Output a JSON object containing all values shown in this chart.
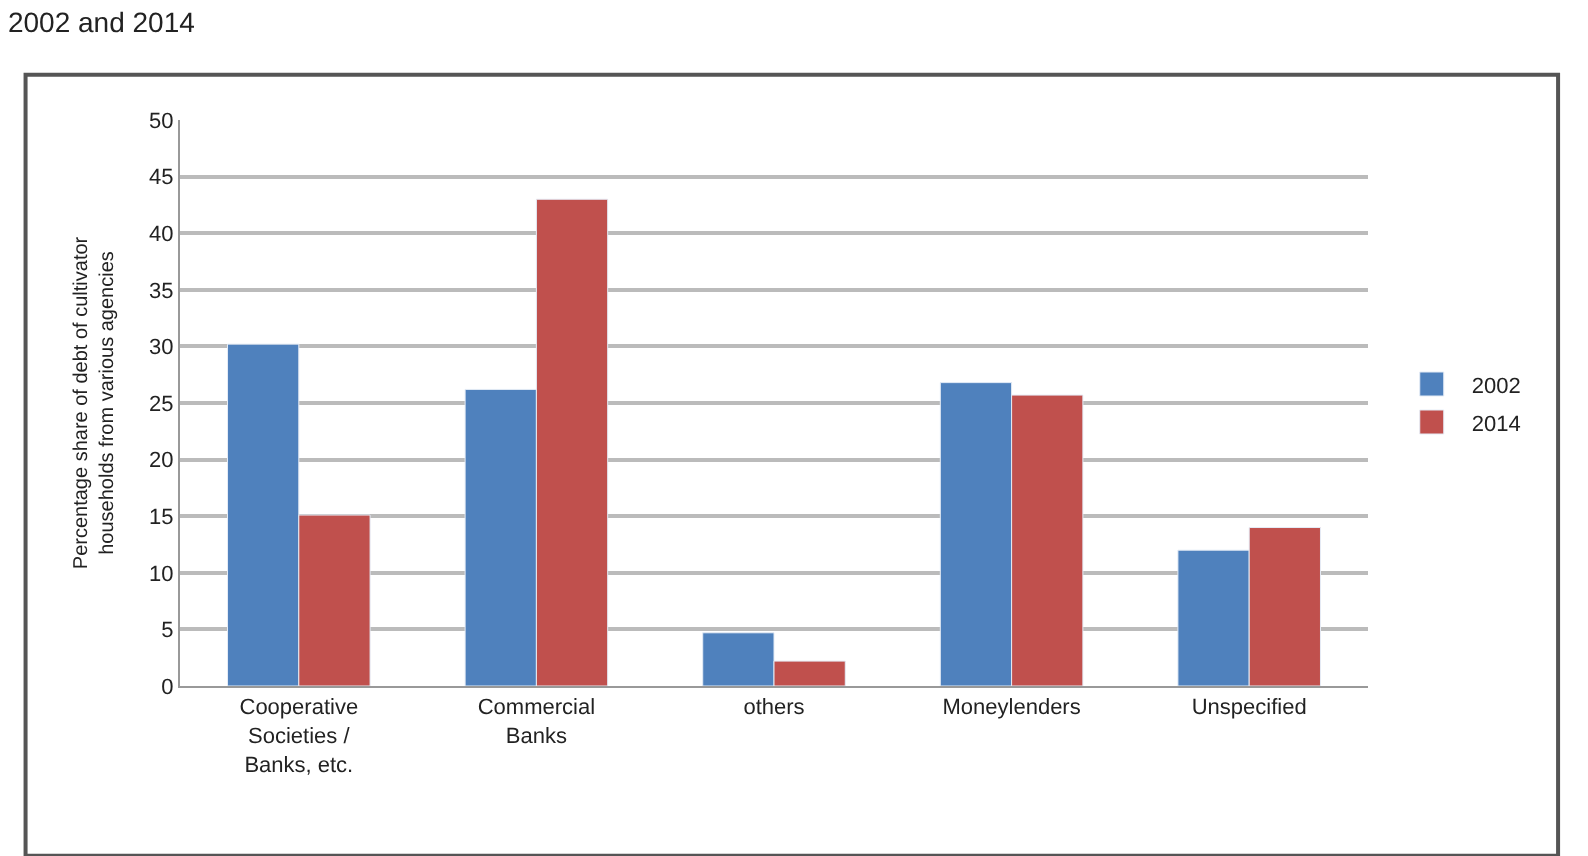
{
  "chart_data": {
    "type": "bar",
    "title": "2002 and 2014",
    "categories": [
      "Cooperative\nSocieties /\nBanks, etc.",
      "Commercial\nBanks",
      "others",
      "Moneylenders",
      "Unspecified"
    ],
    "series": [
      {
        "name": "2002",
        "color": "#4f81bd",
        "values": [
          30.2,
          26.2,
          4.7,
          26.8,
          12.0
        ]
      },
      {
        "name": "2014",
        "color": "#c0504d",
        "values": [
          15.1,
          43.0,
          2.2,
          25.7,
          14.0
        ]
      }
    ],
    "ylabel": "Percentage share of debt of cultivator\nhouseholds from various agencies",
    "ylim": [
      0,
      50
    ],
    "yticks": [
      0,
      5,
      10,
      15,
      20,
      25,
      30,
      35,
      40,
      45,
      50
    ],
    "grid": "y",
    "legend": "right"
  }
}
